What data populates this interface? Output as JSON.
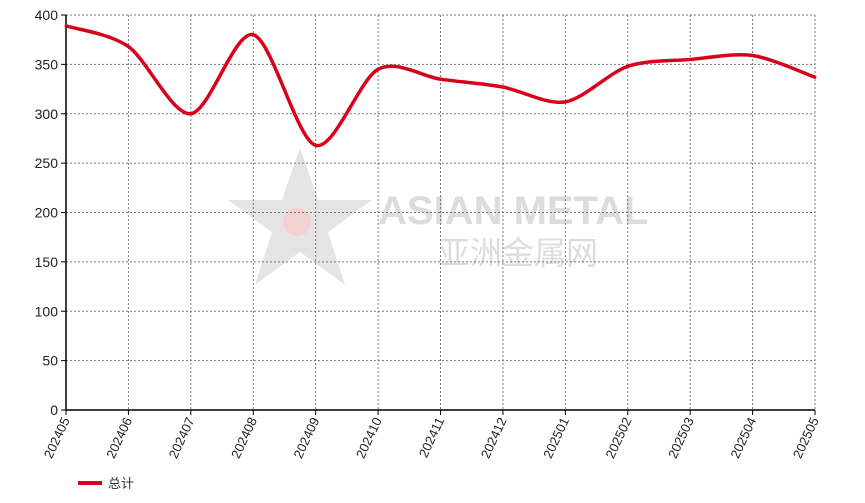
{
  "chart_data": {
    "type": "line",
    "title": "",
    "xlabel": "",
    "ylabel": "",
    "categories": [
      "202405",
      "202406",
      "202407",
      "202408",
      "202409",
      "202410",
      "202411",
      "202412",
      "202501",
      "202502",
      "202503",
      "202504",
      "202505"
    ],
    "series": [
      {
        "name": "总计",
        "color": "#d9001b",
        "values": [
          389,
          368,
          300,
          380,
          268,
          345,
          335,
          327,
          312,
          348,
          355,
          359,
          337
        ]
      }
    ],
    "ylim": [
      0,
      400
    ],
    "yticks": [
      0,
      50,
      100,
      150,
      200,
      250,
      300,
      350,
      400
    ],
    "grid": true,
    "legend": "bottom-left",
    "smooth": true
  },
  "watermark": {
    "text_en": "ASIAN METAL",
    "text_cn": "亚洲金属网",
    "badge": "AM"
  }
}
